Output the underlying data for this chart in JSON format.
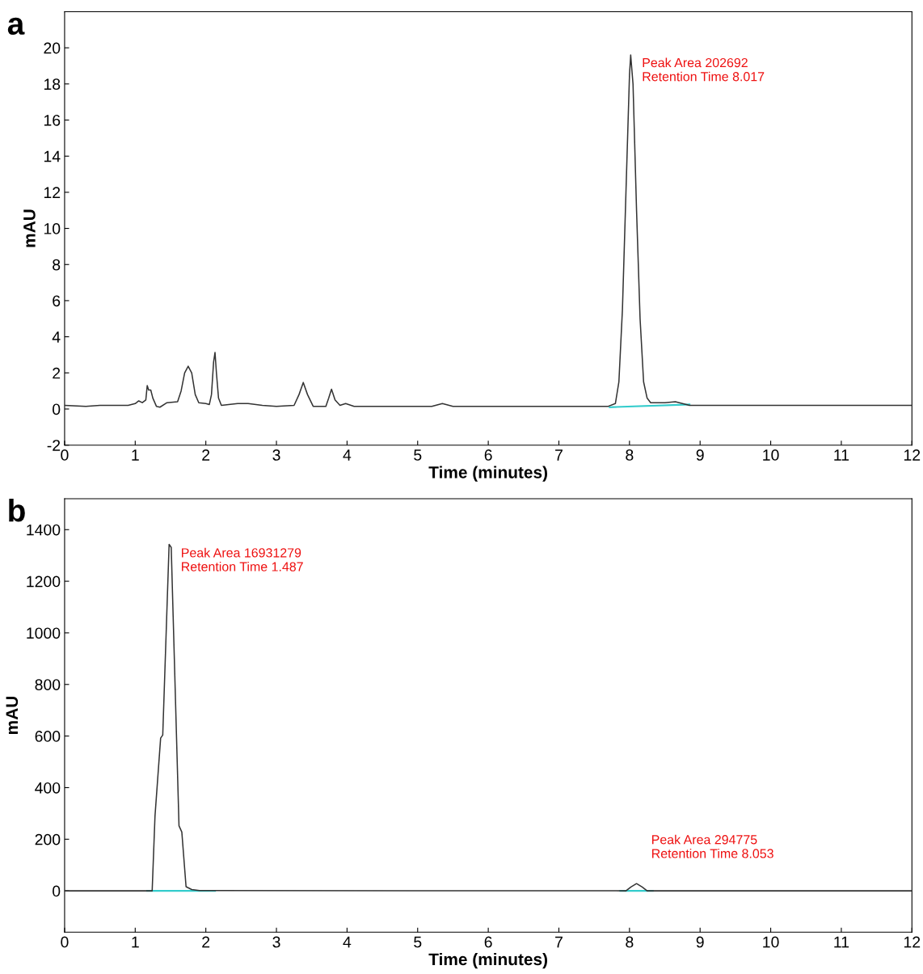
{
  "chart_data": [
    {
      "type": "line",
      "title": "a",
      "xlabel": "Time (minutes)",
      "ylabel": "mAU",
      "xlim": [
        0,
        12
      ],
      "ylim": [
        -2,
        22
      ],
      "xticks": [
        0,
        1,
        2,
        3,
        4,
        5,
        6,
        7,
        8,
        9,
        10,
        11,
        12
      ],
      "yticks": [
        -2,
        0,
        2,
        4,
        6,
        8,
        10,
        12,
        14,
        16,
        18,
        20
      ],
      "grid": false,
      "legend": false,
      "line_style": "solid",
      "annotations": [
        {
          "text": "Peak Area 202692\nRetention Time 8.017",
          "x": 8.017,
          "y": 19.6
        }
      ],
      "series": [
        {
          "color": "#333333",
          "x": [
            0,
            0.3,
            0.5,
            0.9,
            1.0,
            1.05,
            1.1,
            1.15,
            1.17,
            1.19,
            1.22,
            1.25,
            1.3,
            1.35,
            1.45,
            1.6,
            1.65,
            1.7,
            1.75,
            1.8,
            1.85,
            1.9,
            2.0,
            2.05,
            2.08,
            2.11,
            2.13,
            2.15,
            2.18,
            2.22,
            2.45,
            2.6,
            2.8,
            3.0,
            3.25,
            3.32,
            3.38,
            3.44,
            3.52,
            3.7,
            3.74,
            3.78,
            3.83,
            3.9,
            3.98,
            4.1,
            5.2,
            5.35,
            5.5,
            7.6,
            7.7,
            7.8,
            7.85,
            7.9,
            7.95,
            8.0,
            8.017,
            8.05,
            8.1,
            8.15,
            8.2,
            8.25,
            8.3,
            8.5,
            8.65,
            8.85,
            9.0,
            12
          ],
          "values": [
            0.2,
            0.15,
            0.2,
            0.2,
            0.3,
            0.45,
            0.35,
            0.5,
            1.3,
            1.05,
            1.05,
            0.6,
            0.15,
            0.1,
            0.35,
            0.4,
            1.0,
            2.0,
            2.37,
            2.0,
            0.8,
            0.35,
            0.3,
            0.25,
            0.8,
            2.6,
            3.13,
            2.0,
            0.6,
            0.2,
            0.3,
            0.3,
            0.2,
            0.15,
            0.2,
            0.8,
            1.47,
            0.8,
            0.15,
            0.15,
            0.6,
            1.1,
            0.5,
            0.2,
            0.3,
            0.15,
            0.15,
            0.3,
            0.15,
            0.15,
            0.15,
            0.3,
            1.5,
            5.5,
            12.0,
            18.5,
            19.6,
            18.0,
            11.0,
            5.0,
            1.5,
            0.6,
            0.35,
            0.35,
            0.4,
            0.2,
            0.2,
            0.2
          ]
        },
        {
          "color": "#33cccc",
          "x": [
            7.72,
            8.85
          ],
          "values": [
            0.1,
            0.25
          ]
        }
      ]
    },
    {
      "type": "line",
      "title": "b",
      "xlabel": "Time (minutes)",
      "ylabel": "mAU",
      "xlim": [
        0,
        12
      ],
      "ylim": [
        -160,
        1520
      ],
      "xticks": [
        0,
        1,
        2,
        3,
        4,
        5,
        6,
        7,
        8,
        9,
        10,
        11,
        12
      ],
      "yticks": [
        0,
        200,
        400,
        600,
        800,
        1000,
        1200,
        1400
      ],
      "grid": false,
      "legend": false,
      "line_style": "solid",
      "annotations": [
        {
          "text": "Peak Area 16931279\nRetention Time 1.487",
          "x": 1.487,
          "y": 1340
        },
        {
          "text": "Peak Area 294775\nRetention Time 8.053",
          "x": 8.053,
          "y": 28
        }
      ],
      "series": [
        {
          "color": "#333333",
          "x": [
            0,
            1.24,
            1.28,
            1.36,
            1.39,
            1.48,
            1.51,
            1.62,
            1.66,
            1.72,
            1.8,
            1.91,
            7.95,
            8.02,
            8.1,
            8.18,
            8.25,
            12
          ],
          "values": [
            0,
            0,
            289,
            592,
            604,
            1343,
            1331,
            252,
            228,
            16,
            5,
            1,
            0,
            15,
            28,
            15,
            0,
            0
          ]
        },
        {
          "color": "#33cccc",
          "x": [
            1.17,
            2.13
          ],
          "values": [
            0,
            0
          ]
        },
        {
          "color": "#33cccc",
          "x": [
            7.87,
            8.33
          ],
          "values": [
            0,
            0
          ]
        }
      ]
    }
  ]
}
